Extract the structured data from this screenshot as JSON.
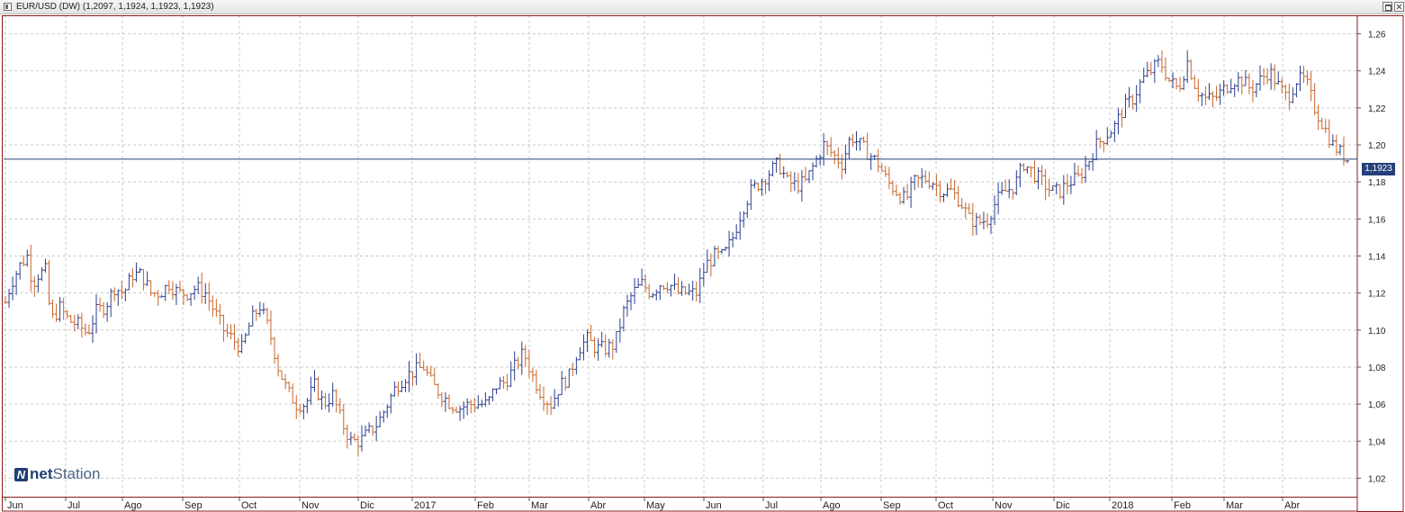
{
  "window": {
    "title": "EUR/USD (DW) (1,2097, 1,1924, 1,1923, 1,1923)",
    "icon": "chart-window-icon",
    "buttons": [
      "restore-icon",
      "close-icon"
    ]
  },
  "logo": {
    "part1": "net",
    "part2": "Station",
    "mark": "N"
  },
  "current_price": {
    "label": "1,1923",
    "value": 1.1923
  },
  "colors": {
    "up_bar": "#2b3f8f",
    "down_bar": "#c8662c",
    "frame": "#8b1a1a",
    "price_line": "#25407a",
    "grid": "#c8c8c8"
  },
  "chart_data": {
    "type": "ohlc",
    "ylim": [
      1.01,
      1.27
    ],
    "y_ticks": [
      "1,02",
      "1,04",
      "1,06",
      "1,08",
      "1,10",
      "1,12",
      "1,14",
      "1,16",
      "1,18",
      "1,20",
      "1,22",
      "1,24",
      "1,26"
    ],
    "x_ticks": [
      "Jun",
      "Jul",
      "Ago",
      "Sep",
      "Oct",
      "Nov",
      "Dic",
      "2017",
      "Feb",
      "Mar",
      "Abr",
      "May",
      "Jun",
      "Jul",
      "Ago",
      "Sep",
      "Oct",
      "Nov",
      "Dic",
      "2018",
      "Feb",
      "Mar",
      "Abr"
    ],
    "grid": true,
    "close_path": [
      [
        0,
        1.115
      ],
      [
        3,
        1.125
      ],
      [
        8,
        1.135
      ],
      [
        12,
        1.14
      ],
      [
        15,
        1.125
      ],
      [
        18,
        1.13
      ],
      [
        22,
        1.132
      ],
      [
        25,
        1.105
      ],
      [
        30,
        1.112
      ],
      [
        35,
        1.105
      ],
      [
        40,
        1.103
      ],
      [
        45,
        1.098
      ],
      [
        50,
        1.11
      ],
      [
        55,
        1.113
      ],
      [
        60,
        1.123
      ],
      [
        65,
        1.12
      ],
      [
        70,
        1.13
      ],
      [
        75,
        1.13
      ],
      [
        80,
        1.12
      ],
      [
        85,
        1.12
      ],
      [
        90,
        1.125
      ],
      [
        95,
        1.12
      ],
      [
        100,
        1.12
      ],
      [
        105,
        1.123
      ],
      [
        110,
        1.12
      ],
      [
        115,
        1.11
      ],
      [
        120,
        1.1
      ],
      [
        125,
        1.095
      ],
      [
        130,
        1.09
      ],
      [
        135,
        1.105
      ],
      [
        140,
        1.113
      ],
      [
        145,
        1.1
      ],
      [
        150,
        1.08
      ],
      [
        155,
        1.067
      ],
      [
        160,
        1.06
      ],
      [
        165,
        1.06
      ],
      [
        170,
        1.07
      ],
      [
        175,
        1.06
      ],
      [
        180,
        1.065
      ],
      [
        185,
        1.05
      ],
      [
        190,
        1.04
      ],
      [
        195,
        1.04
      ],
      [
        200,
        1.045
      ],
      [
        205,
        1.05
      ],
      [
        210,
        1.06
      ],
      [
        215,
        1.07
      ],
      [
        220,
        1.075
      ],
      [
        225,
        1.078
      ],
      [
        230,
        1.08
      ],
      [
        235,
        1.07
      ],
      [
        240,
        1.065
      ],
      [
        245,
        1.06
      ],
      [
        250,
        1.058
      ],
      [
        255,
        1.06
      ],
      [
        260,
        1.06
      ],
      [
        265,
        1.06
      ],
      [
        270,
        1.07
      ],
      [
        275,
        1.072
      ],
      [
        280,
        1.08
      ],
      [
        285,
        1.088
      ],
      [
        290,
        1.075
      ],
      [
        295,
        1.065
      ],
      [
        300,
        1.06
      ],
      [
        305,
        1.07
      ],
      [
        310,
        1.075
      ],
      [
        315,
        1.09
      ],
      [
        320,
        1.095
      ],
      [
        325,
        1.09
      ],
      [
        330,
        1.09
      ],
      [
        335,
        1.092
      ],
      [
        340,
        1.11
      ],
      [
        345,
        1.12
      ],
      [
        350,
        1.125
      ],
      [
        355,
        1.12
      ],
      [
        360,
        1.125
      ],
      [
        365,
        1.125
      ],
      [
        370,
        1.12
      ],
      [
        375,
        1.12
      ],
      [
        380,
        1.12
      ],
      [
        385,
        1.135
      ],
      [
        390,
        1.14
      ],
      [
        395,
        1.14
      ],
      [
        400,
        1.15
      ],
      [
        405,
        1.165
      ],
      [
        410,
        1.175
      ],
      [
        415,
        1.18
      ],
      [
        420,
        1.185
      ],
      [
        425,
        1.19
      ],
      [
        430,
        1.18
      ],
      [
        435,
        1.178
      ],
      [
        440,
        1.18
      ],
      [
        445,
        1.19
      ],
      [
        450,
        1.2
      ],
      [
        455,
        1.195
      ],
      [
        460,
        1.19
      ],
      [
        465,
        1.205
      ],
      [
        470,
        1.2
      ],
      [
        475,
        1.195
      ],
      [
        480,
        1.19
      ],
      [
        485,
        1.18
      ],
      [
        490,
        1.175
      ],
      [
        495,
        1.17
      ],
      [
        500,
        1.18
      ],
      [
        505,
        1.182
      ],
      [
        510,
        1.18
      ],
      [
        515,
        1.175
      ],
      [
        520,
        1.175
      ],
      [
        525,
        1.17
      ],
      [
        530,
        1.16
      ],
      [
        535,
        1.158
      ],
      [
        540,
        1.16
      ],
      [
        545,
        1.17
      ],
      [
        550,
        1.175
      ],
      [
        555,
        1.178
      ],
      [
        560,
        1.19
      ],
      [
        565,
        1.185
      ],
      [
        570,
        1.18
      ],
      [
        575,
        1.175
      ],
      [
        580,
        1.175
      ],
      [
        585,
        1.18
      ],
      [
        590,
        1.182
      ],
      [
        595,
        1.19
      ],
      [
        600,
        1.2
      ],
      [
        605,
        1.205
      ],
      [
        610,
        1.21
      ],
      [
        615,
        1.22
      ],
      [
        620,
        1.225
      ],
      [
        625,
        1.235
      ],
      [
        630,
        1.24
      ],
      [
        635,
        1.245
      ],
      [
        640,
        1.235
      ],
      [
        645,
        1.23
      ],
      [
        650,
        1.245
      ],
      [
        655,
        1.23
      ],
      [
        660,
        1.225
      ],
      [
        665,
        1.225
      ],
      [
        670,
        1.23
      ],
      [
        675,
        1.235
      ],
      [
        680,
        1.235
      ],
      [
        685,
        1.23
      ],
      [
        690,
        1.235
      ],
      [
        695,
        1.24
      ],
      [
        700,
        1.232
      ],
      [
        705,
        1.225
      ],
      [
        710,
        1.235
      ],
      [
        715,
        1.235
      ],
      [
        720,
        1.22
      ],
      [
        725,
        1.21
      ],
      [
        730,
        1.2
      ],
      [
        735,
        1.195
      ],
      [
        738,
        1.1923
      ]
    ]
  }
}
